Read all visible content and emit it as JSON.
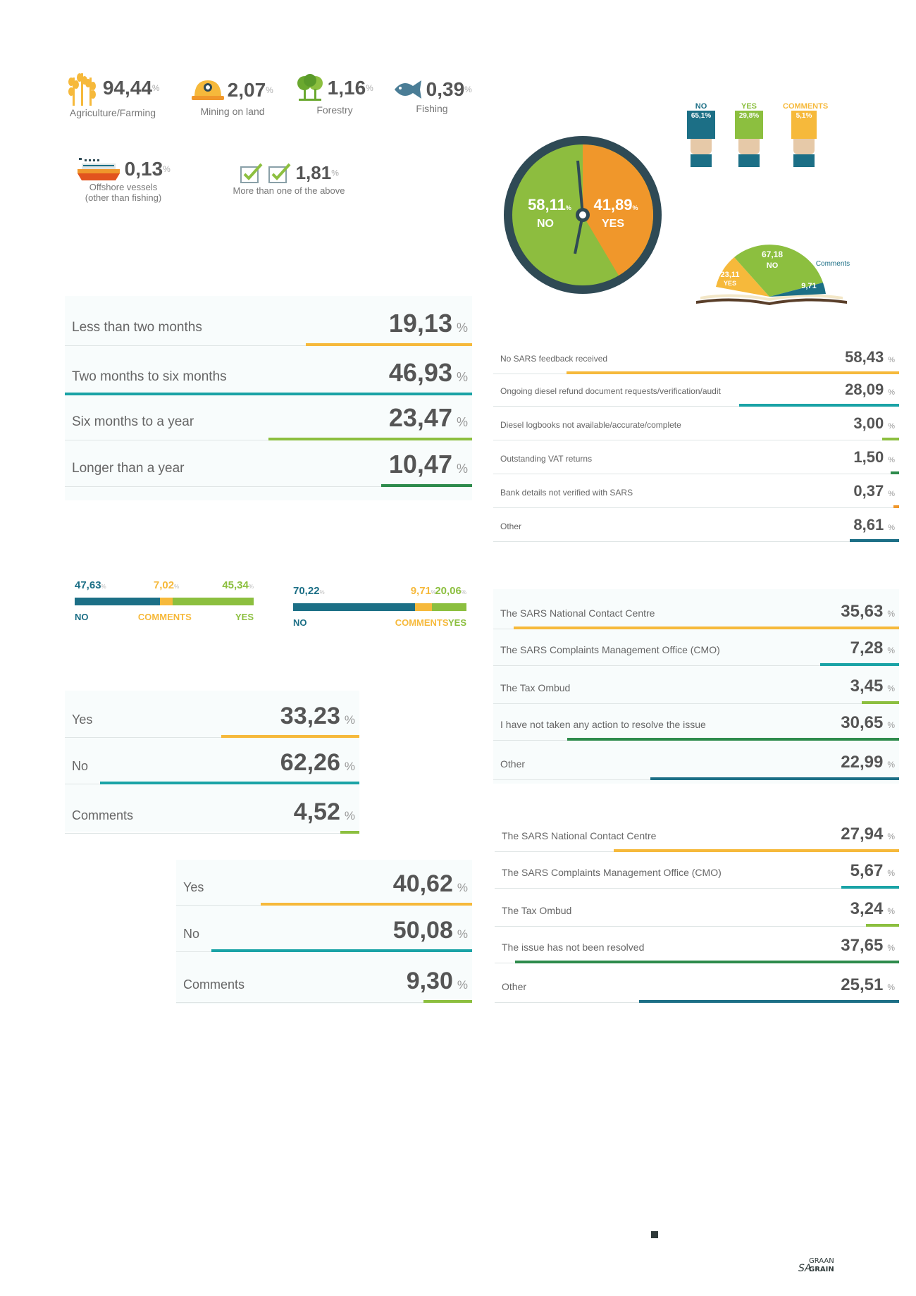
{
  "colors": {
    "orange": "#f6b93b",
    "teal": "#1aa3a6",
    "green": "#8cbf3f",
    "darkgreen": "#2e8b4c",
    "navy": "#1c6f86",
    "gauge_green": "#8dbd3f",
    "gauge_orange": "#f0972b",
    "gauge_ring": "#2f4a55"
  },
  "sectors": [
    {
      "value": "94,44",
      "unit": "%",
      "label": "Agriculture/Farming",
      "icon": "wheat-icon"
    },
    {
      "value": "2,07",
      "unit": "%",
      "label": "Mining on land",
      "icon": "hardhat-icon"
    },
    {
      "value": "1,16",
      "unit": "%",
      "label": "Forestry",
      "icon": "tree-icon"
    },
    {
      "value": "0,39",
      "unit": "%",
      "label": "Fishing",
      "icon": "fish-icon"
    },
    {
      "value": "0,13",
      "unit": "%",
      "label": "Offshore vessels (other than fishing)",
      "icon": "ship-icon"
    },
    {
      "value": "1,81",
      "unit": "%",
      "label": "More than one of the above",
      "icon": "checkbox-icon"
    }
  ],
  "gauge": {
    "no_value": "58,11",
    "no_label": "NO",
    "yes_value": "41,89",
    "yes_label": "YES",
    "unit": "%"
  },
  "hands": [
    {
      "label": "NO",
      "value": "65,1%",
      "color": "#1c6f86"
    },
    {
      "label": "YES",
      "value": "29,8%",
      "color": "#8cbf3f"
    },
    {
      "label": "COMMENTS",
      "value": "5,1%",
      "color": "#f6b93b"
    }
  ],
  "book": {
    "no_value": "67,18",
    "no_label": "NO",
    "yes_value": "23,11",
    "yes_label": "YES",
    "comments_value": "9,71",
    "comments_label": "Comments"
  },
  "chart_data": [
    {
      "type": "bar",
      "panel": "duration",
      "categories": [
        "Less than two months",
        "Two months to six months",
        "Six months to a year",
        "Longer than a year"
      ],
      "values": [
        19.13,
        46.93,
        23.47,
        10.47
      ],
      "value_labels": [
        "19,13",
        "46,93",
        "23,47",
        "10,47"
      ],
      "colors": [
        "#f6b93b",
        "#1aa3a6",
        "#8cbf3f",
        "#2e8b4c"
      ],
      "unit": "%"
    },
    {
      "type": "bar",
      "panel": "reasons",
      "categories": [
        "No SARS feedback received",
        "Ongoing diesel refund document requests/verification/audit",
        "Diesel logbooks not available/accurate/complete",
        "Outstanding VAT returns",
        "Bank details not verified with SARS",
        "Other"
      ],
      "values": [
        58.43,
        28.09,
        3.0,
        1.5,
        0.37,
        8.61
      ],
      "value_labels": [
        "58,43",
        "28,09",
        "3,00",
        "1,50",
        "0,37",
        "8,61"
      ],
      "colors": [
        "#f6b93b",
        "#1aa3a6",
        "#8cbf3f",
        "#2e8b4c",
        "#f0972b",
        "#1c6f86"
      ],
      "unit": "%"
    },
    {
      "type": "bar",
      "panel": "stack1",
      "categories": [
        "NO",
        "COMMENTS",
        "YES"
      ],
      "values": [
        47.63,
        7.02,
        45.34
      ],
      "value_labels": [
        "47,63",
        "7,02",
        "45,34"
      ],
      "colors": [
        "#1c6f86",
        "#f6b93b",
        "#8cbf3f"
      ],
      "unit": "%"
    },
    {
      "type": "bar",
      "panel": "stack2",
      "categories": [
        "NO",
        "COMMENTS",
        "YES"
      ],
      "values": [
        70.22,
        9.71,
        20.06
      ],
      "value_labels": [
        "70,22",
        "9,71",
        "20,06"
      ],
      "colors": [
        "#1c6f86",
        "#f6b93b",
        "#8cbf3f"
      ],
      "unit": "%"
    },
    {
      "type": "bar",
      "panel": "yesno1",
      "categories": [
        "Yes",
        "No",
        "Comments"
      ],
      "values": [
        33.23,
        62.26,
        4.52
      ],
      "value_labels": [
        "33,23",
        "62,26",
        "4,52"
      ],
      "colors": [
        "#f6b93b",
        "#1aa3a6",
        "#8cbf3f"
      ],
      "unit": "%"
    },
    {
      "type": "bar",
      "panel": "yesno2",
      "categories": [
        "Yes",
        "No",
        "Comments"
      ],
      "values": [
        40.62,
        50.08,
        9.3
      ],
      "value_labels": [
        "40,62",
        "50,08",
        "9,30"
      ],
      "colors": [
        "#f6b93b",
        "#1aa3a6",
        "#8cbf3f"
      ],
      "unit": "%"
    },
    {
      "type": "bar",
      "panel": "action",
      "categories": [
        "The SARS National Contact Centre",
        "The SARS Complaints Management Office (CMO)",
        "The Tax Ombud",
        "I have not taken any action to resolve the issue",
        "Other"
      ],
      "values": [
        35.63,
        7.28,
        3.45,
        30.65,
        22.99
      ],
      "value_labels": [
        "35,63",
        "7,28",
        "3,45",
        "30,65",
        "22,99"
      ],
      "colors": [
        "#f6b93b",
        "#1aa3a6",
        "#8cbf3f",
        "#2e8b4c",
        "#1c6f86"
      ],
      "unit": "%"
    },
    {
      "type": "bar",
      "panel": "resolved",
      "categories": [
        "The SARS National Contact Centre",
        "The SARS Complaints Management Office (CMO)",
        "The Tax Ombud",
        "The issue has not been resolved",
        "Other"
      ],
      "values": [
        27.94,
        5.67,
        3.24,
        37.65,
        25.51
      ],
      "value_labels": [
        "27,94",
        "5,67",
        "3,24",
        "37,65",
        "25,51"
      ],
      "colors": [
        "#f6b93b",
        "#1aa3a6",
        "#8cbf3f",
        "#2e8b4c",
        "#1c6f86"
      ],
      "unit": "%"
    }
  ],
  "footer": {
    "logo_top": "GRAAN",
    "logo_bottom": "GRAIN",
    "logo_prefix": "SA"
  }
}
